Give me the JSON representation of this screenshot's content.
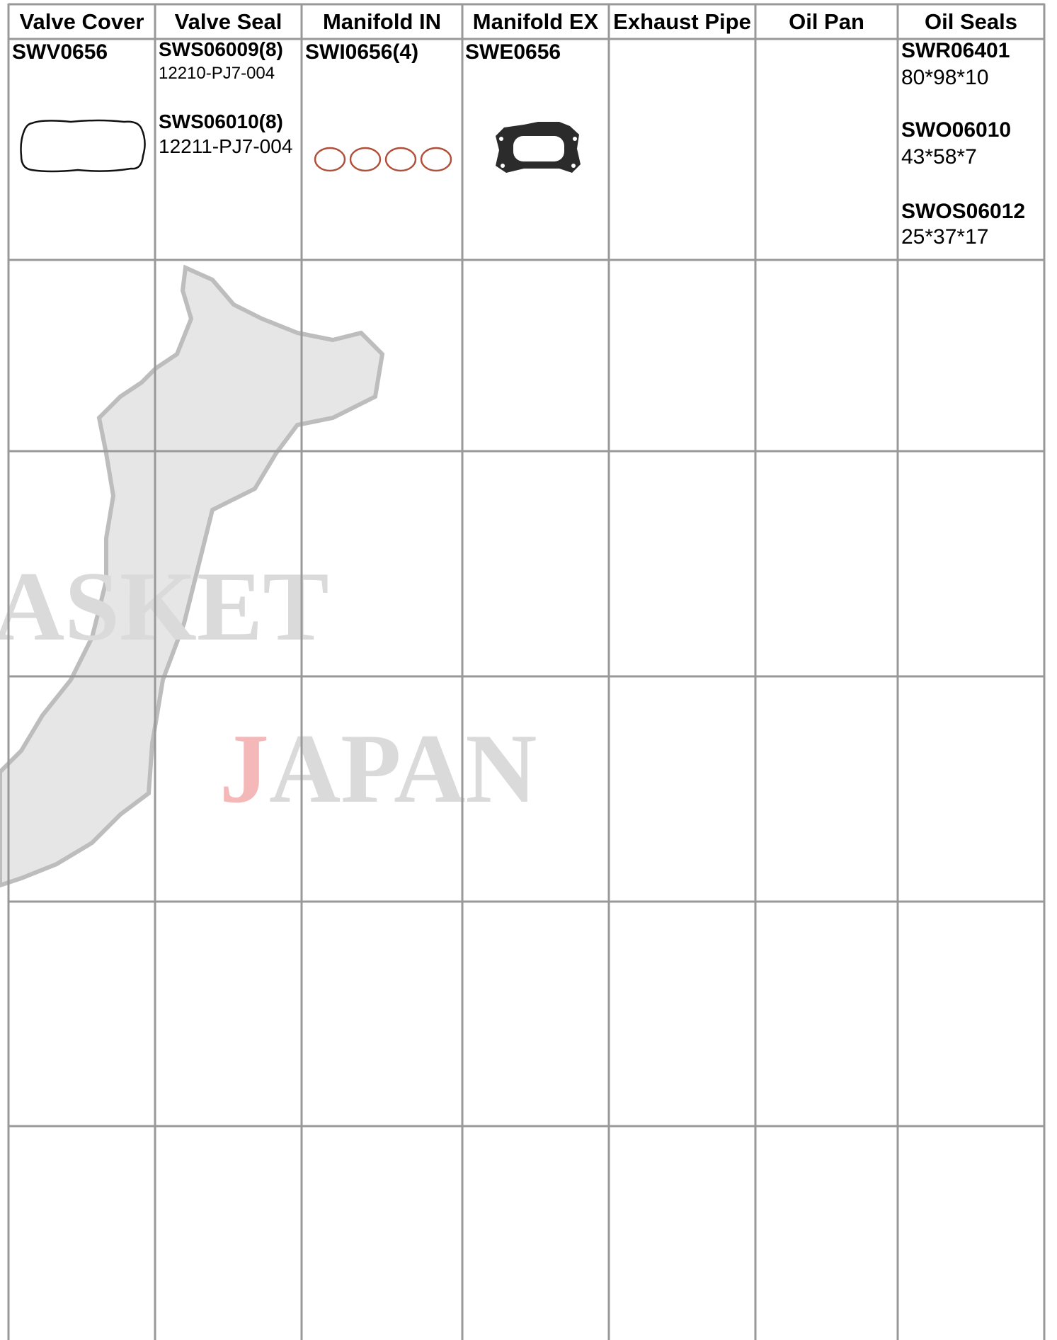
{
  "header": {
    "columns": [
      "Valve Cover",
      "Valve Seal",
      "Manifold IN",
      "Manifold EX",
      "Exhaust Pipe",
      "Oil Pan",
      "Oil Seals"
    ]
  },
  "rows": [
    {
      "valve_cover": {
        "part": "SWV0656"
      },
      "valve_seal": [
        {
          "part": "SWS06009(8)",
          "number": "12210-PJ7-004"
        },
        {
          "part": "SWS06010(8)",
          "number": "12211-PJ7-004"
        }
      ],
      "manifold_in": {
        "part": "SWI0656(4)"
      },
      "manifold_ex": {
        "part": "SWE0656"
      },
      "oil_seals": [
        {
          "part": "SWR06401",
          "size": "80*98*10"
        },
        {
          "part": "SWO06010",
          "size": "43*58*7"
        },
        {
          "part": "SWOS06012",
          "size": "25*37*17"
        }
      ]
    }
  ],
  "watermark": {
    "brand": "ASKET",
    "country_initial": "J",
    "country_rest": "APAN"
  }
}
